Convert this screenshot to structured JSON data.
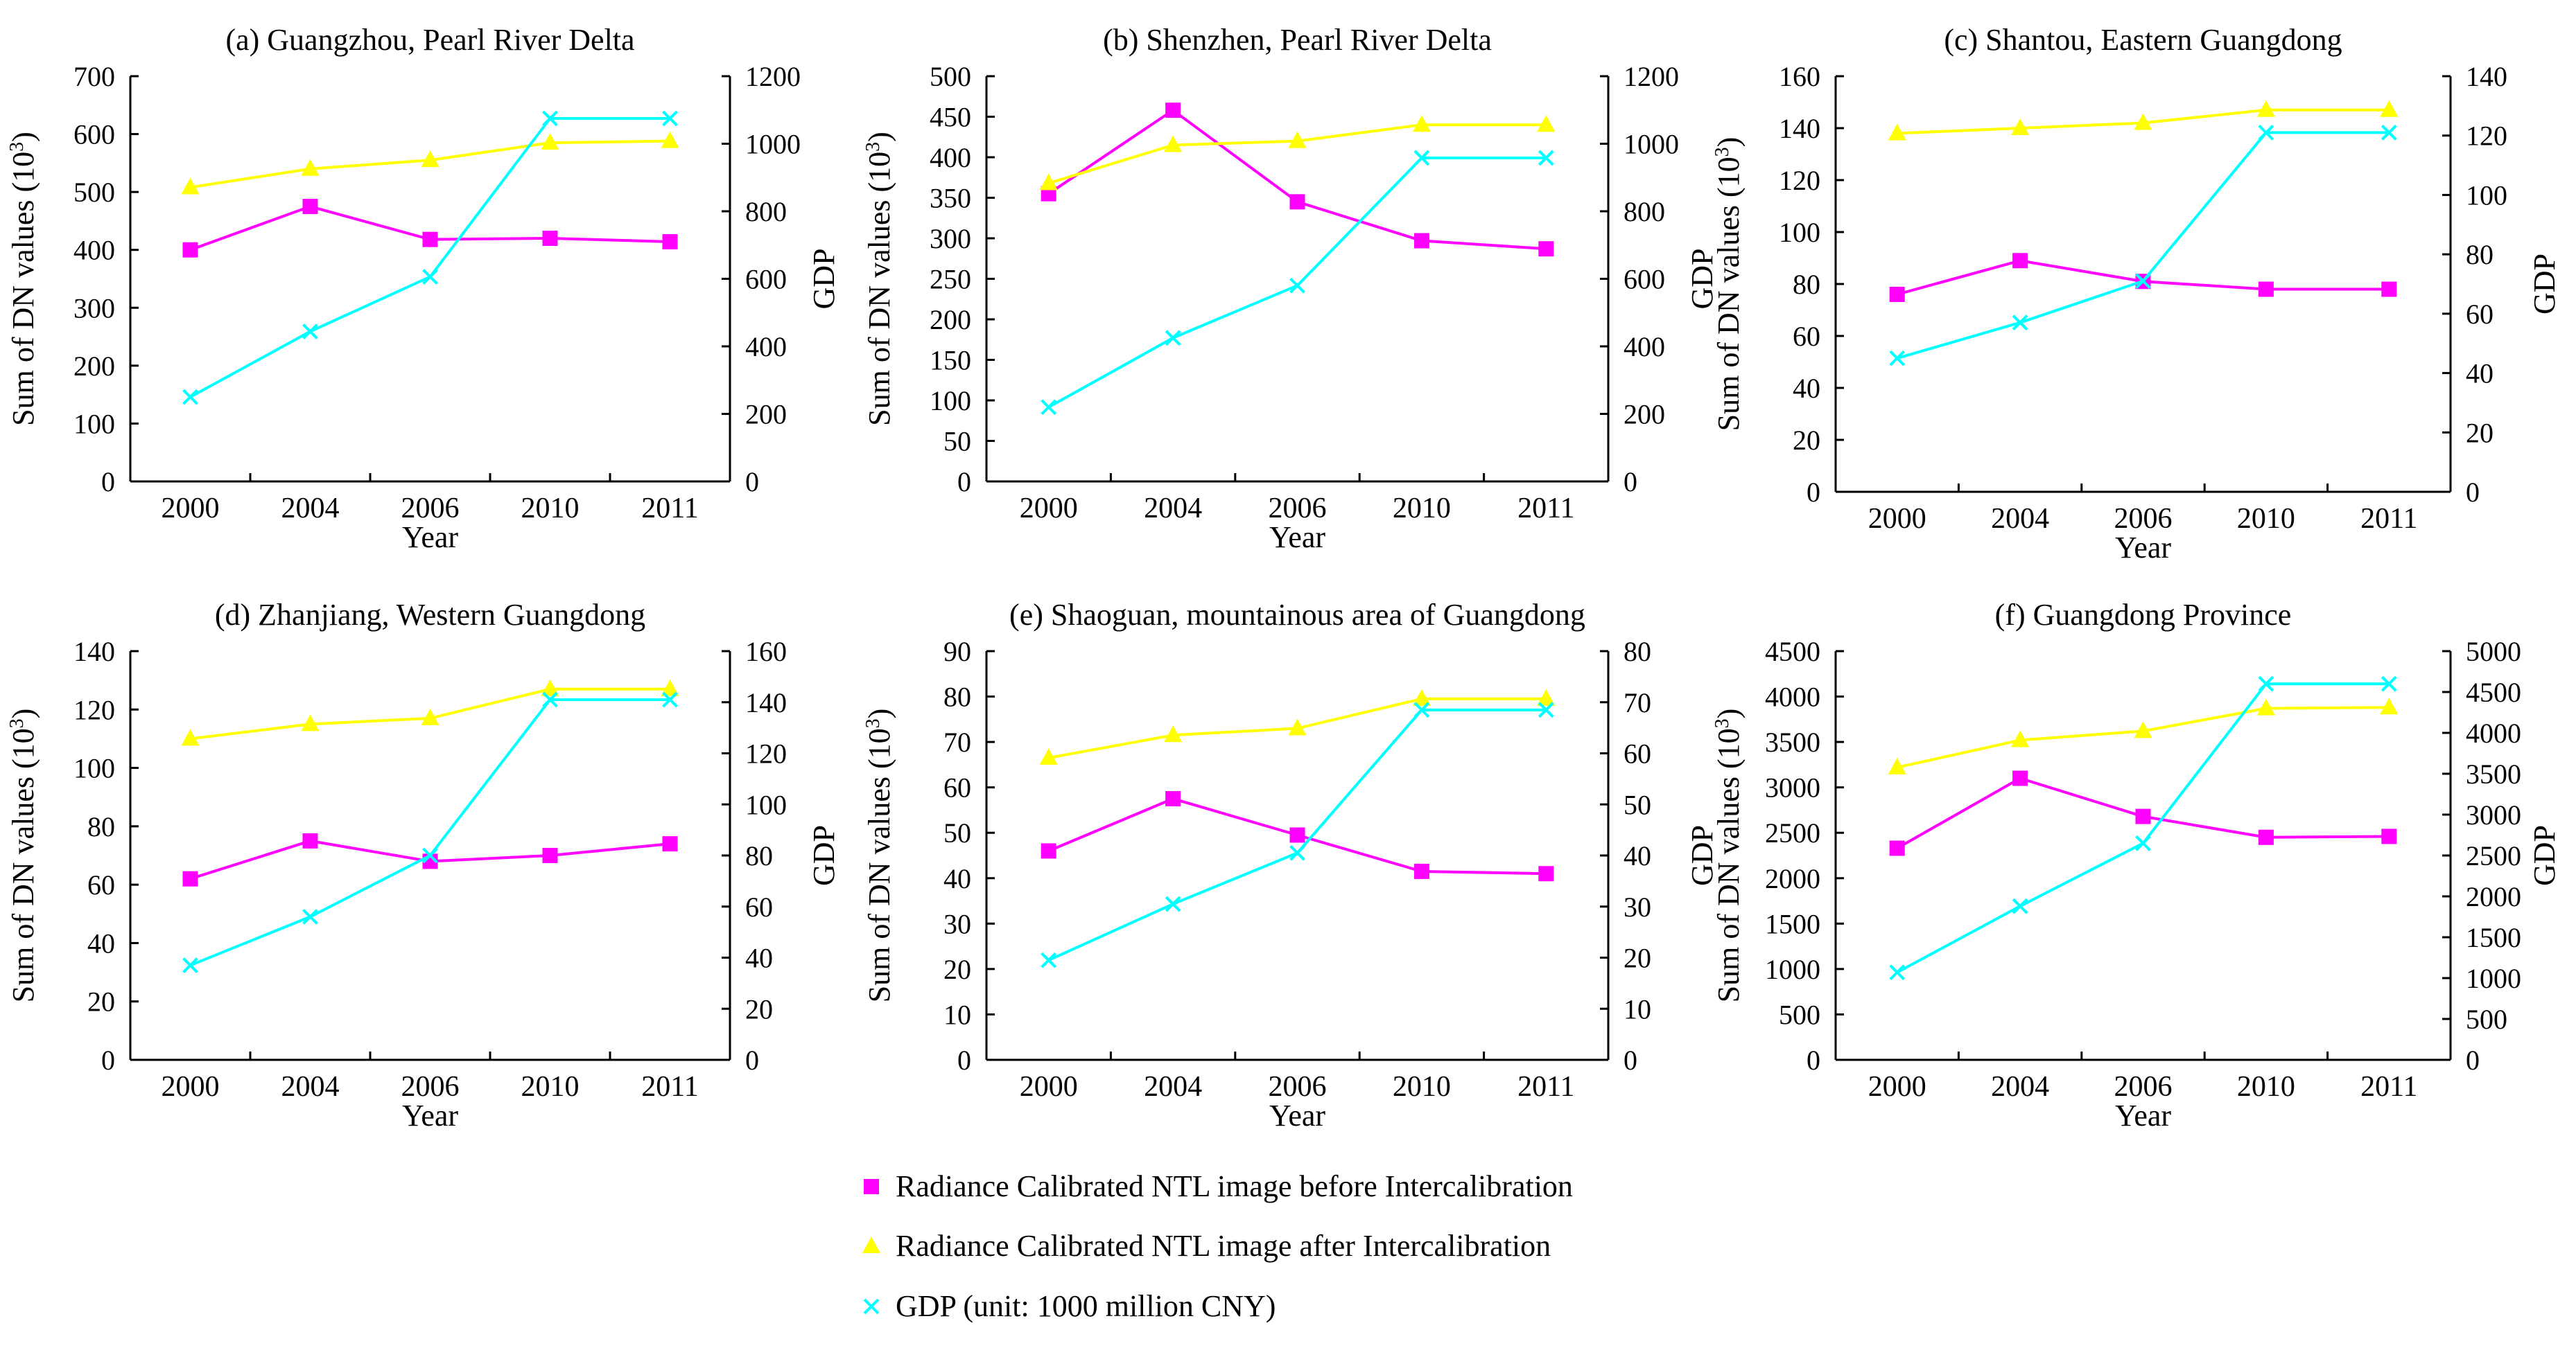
{
  "figure": {
    "legend": [
      {
        "label": "Radiance Calibrated NTL image before Intercalibration",
        "color": "#ff00ff",
        "marker": "square"
      },
      {
        "label": "Radiance Calibrated NTL image after Intercalibration",
        "color": "#ffff00",
        "marker": "triangle"
      },
      {
        "label": "GDP (unit: 1000 million CNY)",
        "color": "#00ffff",
        "marker": "x"
      }
    ]
  },
  "chart_data": [
    {
      "type": "line",
      "title": "(a) Guangzhou, Pearl River Delta",
      "xlabel": "Year",
      "ylabel": "Sum of DN values (10",
      "ylabel_sup": "3",
      "ylabel_tail": ")",
      "y2label": "GDP",
      "categories": [
        "2000",
        "2004",
        "2006",
        "2010",
        "2011"
      ],
      "ylim": [
        0,
        700
      ],
      "yticks": [
        0,
        100,
        200,
        300,
        400,
        500,
        600,
        700
      ],
      "y2lim": [
        0,
        1200
      ],
      "y2ticks": [
        0,
        200,
        400,
        600,
        800,
        1000,
        1200
      ],
      "series": [
        {
          "name": "Radiance Calibrated NTL image before Intercalibration",
          "axis": "left",
          "marker": "square",
          "color": "#ff00ff",
          "values": [
            400,
            475,
            418,
            420,
            414
          ]
        },
        {
          "name": "Radiance Calibrated NTL image after Intercalibration",
          "axis": "left",
          "marker": "triangle",
          "color": "#ffff00",
          "values": [
            508,
            540,
            555,
            585,
            588
          ]
        },
        {
          "name": "GDP (unit: 1000 million CNY)",
          "axis": "right",
          "marker": "x",
          "color": "#00ffff",
          "values": [
            250,
            444,
            606,
            1075,
            1075
          ]
        }
      ]
    },
    {
      "type": "line",
      "title": "(b) Shenzhen, Pearl River Delta",
      "xlabel": "Year",
      "ylabel": "Sum of DN values (10",
      "ylabel_sup": "3",
      "ylabel_tail": ")",
      "y2label": "GDP",
      "categories": [
        "2000",
        "2004",
        "2006",
        "2010",
        "2011"
      ],
      "ylim": [
        0,
        500
      ],
      "yticks": [
        0,
        50,
        100,
        150,
        200,
        250,
        300,
        350,
        400,
        450,
        500
      ],
      "y2lim": [
        0,
        1200
      ],
      "y2ticks": [
        0,
        200,
        400,
        600,
        800,
        1000,
        1200
      ],
      "series": [
        {
          "name": "Radiance Calibrated NTL image before Intercalibration",
          "axis": "left",
          "marker": "square",
          "color": "#ff00ff",
          "values": [
            355,
            458,
            345,
            297,
            287
          ]
        },
        {
          "name": "Radiance Calibrated NTL image after Intercalibration",
          "axis": "left",
          "marker": "triangle",
          "color": "#ffff00",
          "values": [
            368,
            415,
            420,
            440,
            440
          ]
        },
        {
          "name": "GDP (unit: 1000 million CNY)",
          "axis": "right",
          "marker": "x",
          "color": "#00ffff",
          "values": [
            220,
            425,
            580,
            958,
            958
          ]
        }
      ]
    },
    {
      "type": "line",
      "title": "(c) Shantou, Eastern Guangdong",
      "xlabel": "Year",
      "ylabel": "Sum of DN values (10",
      "ylabel_sup": "3",
      "ylabel_tail": ")",
      "y2label": "GDP",
      "categories": [
        "2000",
        "2004",
        "2006",
        "2010",
        "2011"
      ],
      "ylim": [
        0,
        160
      ],
      "yticks": [
        0,
        20,
        40,
        60,
        80,
        100,
        120,
        140,
        160
      ],
      "y2lim": [
        0,
        140
      ],
      "y2ticks": [
        0,
        20,
        40,
        60,
        80,
        100,
        120,
        140
      ],
      "series": [
        {
          "name": "Radiance Calibrated NTL image before Intercalibration",
          "axis": "left",
          "marker": "square",
          "color": "#ff00ff",
          "values": [
            76,
            89,
            81,
            78,
            78
          ]
        },
        {
          "name": "Radiance Calibrated NTL image after Intercalibration",
          "axis": "left",
          "marker": "triangle",
          "color": "#ffff00",
          "values": [
            138,
            140,
            142,
            147,
            147
          ]
        },
        {
          "name": "GDP (unit: 1000 million CNY)",
          "axis": "right",
          "marker": "x",
          "color": "#00ffff",
          "values": [
            45,
            57,
            71,
            121,
            121
          ]
        }
      ]
    },
    {
      "type": "line",
      "title": "(d) Zhanjiang, Western Guangdong",
      "xlabel": "Year",
      "ylabel": "Sum of DN values (10",
      "ylabel_sup": "3",
      "ylabel_tail": ")",
      "y2label": "GDP",
      "categories": [
        "2000",
        "2004",
        "2006",
        "2010",
        "2011"
      ],
      "ylim": [
        0,
        140
      ],
      "yticks": [
        0,
        20,
        40,
        60,
        80,
        100,
        120,
        140
      ],
      "y2lim": [
        0,
        160
      ],
      "y2ticks": [
        0,
        20,
        40,
        60,
        80,
        100,
        120,
        140,
        160
      ],
      "series": [
        {
          "name": "Radiance Calibrated NTL image before Intercalibration",
          "axis": "left",
          "marker": "square",
          "color": "#ff00ff",
          "values": [
            62,
            75,
            68,
            70,
            74
          ]
        },
        {
          "name": "Radiance Calibrated NTL image after Intercalibration",
          "axis": "left",
          "marker": "triangle",
          "color": "#ffff00",
          "values": [
            110,
            115,
            117,
            127,
            127
          ]
        },
        {
          "name": "GDP (unit: 1000 million CNY)",
          "axis": "right",
          "marker": "x",
          "color": "#00ffff",
          "values": [
            37,
            56,
            80,
            141,
            141
          ]
        }
      ]
    },
    {
      "type": "line",
      "title": "(e) Shaoguan, mountainous area of Guangdong",
      "xlabel": "Year",
      "ylabel": "Sum of DN values (10",
      "ylabel_sup": "3",
      "ylabel_tail": ")",
      "y2label": "GDP",
      "categories": [
        "2000",
        "2004",
        "2006",
        "2010",
        "2011"
      ],
      "ylim": [
        0,
        90
      ],
      "yticks": [
        0,
        10,
        20,
        30,
        40,
        50,
        60,
        70,
        80,
        90
      ],
      "y2lim": [
        0,
        80
      ],
      "y2ticks": [
        0,
        10,
        20,
        30,
        40,
        50,
        60,
        70,
        80
      ],
      "series": [
        {
          "name": "Radiance Calibrated NTL image before Intercalibration",
          "axis": "left",
          "marker": "square",
          "color": "#ff00ff",
          "values": [
            46,
            57.5,
            49.5,
            41.5,
            41
          ]
        },
        {
          "name": "Radiance Calibrated NTL image after Intercalibration",
          "axis": "left",
          "marker": "triangle",
          "color": "#ffff00",
          "values": [
            66.5,
            71.5,
            73,
            79.5,
            79.5
          ]
        },
        {
          "name": "GDP (unit: 1000 million CNY)",
          "axis": "right",
          "marker": "x",
          "color": "#00ffff",
          "values": [
            19.5,
            30.5,
            40.5,
            68.5,
            68.5
          ]
        }
      ]
    },
    {
      "type": "line",
      "title": "(f) Guangdong  Province",
      "xlabel": "Year",
      "ylabel": "Sum of DN values (10",
      "ylabel_sup": "3",
      "ylabel_tail": ")",
      "y2label": "GDP",
      "categories": [
        "2000",
        "2004",
        "2006",
        "2010",
        "2011"
      ],
      "ylim": [
        0,
        4500
      ],
      "yticks": [
        0,
        500,
        1000,
        1500,
        2000,
        2500,
        3000,
        3500,
        4000,
        4500
      ],
      "y2lim": [
        0,
        5000
      ],
      "y2ticks": [
        0,
        500,
        1000,
        1500,
        2000,
        2500,
        3000,
        3500,
        4000,
        4500,
        5000
      ],
      "series": [
        {
          "name": "Radiance Calibrated NTL image before Intercalibration",
          "axis": "left",
          "marker": "square",
          "color": "#ff00ff",
          "values": [
            2330,
            3100,
            2680,
            2450,
            2460
          ]
        },
        {
          "name": "Radiance Calibrated NTL image after Intercalibration",
          "axis": "left",
          "marker": "triangle",
          "color": "#ffff00",
          "values": [
            3220,
            3520,
            3620,
            3870,
            3880
          ]
        },
        {
          "name": "GDP (unit: 1000 million CNY)",
          "axis": "right",
          "marker": "x",
          "color": "#00ffff",
          "values": [
            1070,
            1880,
            2650,
            4600,
            4600
          ]
        }
      ]
    }
  ]
}
